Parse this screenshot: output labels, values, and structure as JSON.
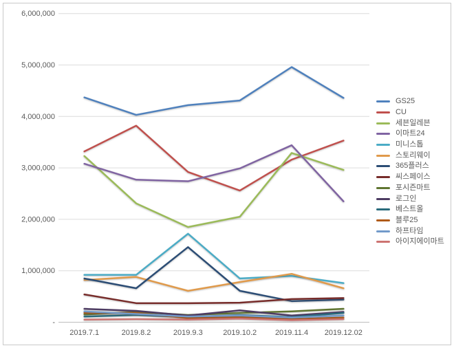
{
  "chart_data": {
    "type": "line",
    "title": "",
    "xlabel": "",
    "ylabel": "",
    "legend_position": "right",
    "grid": "horizontal",
    "y_axis": {
      "min": 0,
      "max": 6000000,
      "step": 1000000,
      "zero_label": "-"
    },
    "categories": [
      "2019.7.1",
      "2019.8.2",
      "2019.9.3",
      "2019.10.2",
      "2019.11.4",
      "2019.12.02"
    ],
    "series": [
      {
        "name": "GS25",
        "color": "#4F81BD",
        "values": [
          4370000,
          4030000,
          4220000,
          4310000,
          4960000,
          4360000
        ]
      },
      {
        "name": "CU",
        "color": "#C0504D",
        "values": [
          3320000,
          3820000,
          2920000,
          2560000,
          3160000,
          3530000
        ]
      },
      {
        "name": "세븐일레븐",
        "color": "#9BBB59",
        "values": [
          3230000,
          2310000,
          1850000,
          2050000,
          3290000,
          2960000
        ]
      },
      {
        "name": "이마트24",
        "color": "#8064A2",
        "values": [
          3080000,
          2770000,
          2740000,
          2990000,
          3440000,
          2350000
        ]
      },
      {
        "name": "미니스톱",
        "color": "#4BACC6",
        "values": [
          920000,
          920000,
          1720000,
          850000,
          900000,
          760000
        ]
      },
      {
        "name": "스토리웨이",
        "color": "#E09A4B",
        "values": [
          820000,
          880000,
          610000,
          780000,
          940000,
          660000
        ]
      },
      {
        "name": "365플러스",
        "color": "#2C4D75",
        "values": [
          850000,
          660000,
          1460000,
          610000,
          410000,
          440000
        ]
      },
      {
        "name": "씨스페이스",
        "color": "#772C2A",
        "values": [
          540000,
          370000,
          370000,
          380000,
          450000,
          470000
        ]
      },
      {
        "name": "포시즌마트",
        "color": "#5F7530",
        "values": [
          150000,
          200000,
          140000,
          180000,
          210000,
          260000
        ]
      },
      {
        "name": "로그인",
        "color": "#4D3B62",
        "values": [
          260000,
          220000,
          130000,
          230000,
          130000,
          200000
        ]
      },
      {
        "name": "베스트올",
        "color": "#2A6B7C",
        "values": [
          110000,
          140000,
          100000,
          140000,
          100000,
          180000
        ]
      },
      {
        "name": "블루25",
        "color": "#B05A18",
        "values": [
          180000,
          180000,
          80000,
          100000,
          60000,
          90000
        ]
      },
      {
        "name": "하프타임",
        "color": "#729ACA",
        "values": [
          210000,
          160000,
          110000,
          130000,
          90000,
          130000
        ]
      },
      {
        "name": "아이지에이마트",
        "color": "#CD7371",
        "values": [
          50000,
          60000,
          50000,
          70000,
          40000,
          60000
        ]
      }
    ]
  }
}
